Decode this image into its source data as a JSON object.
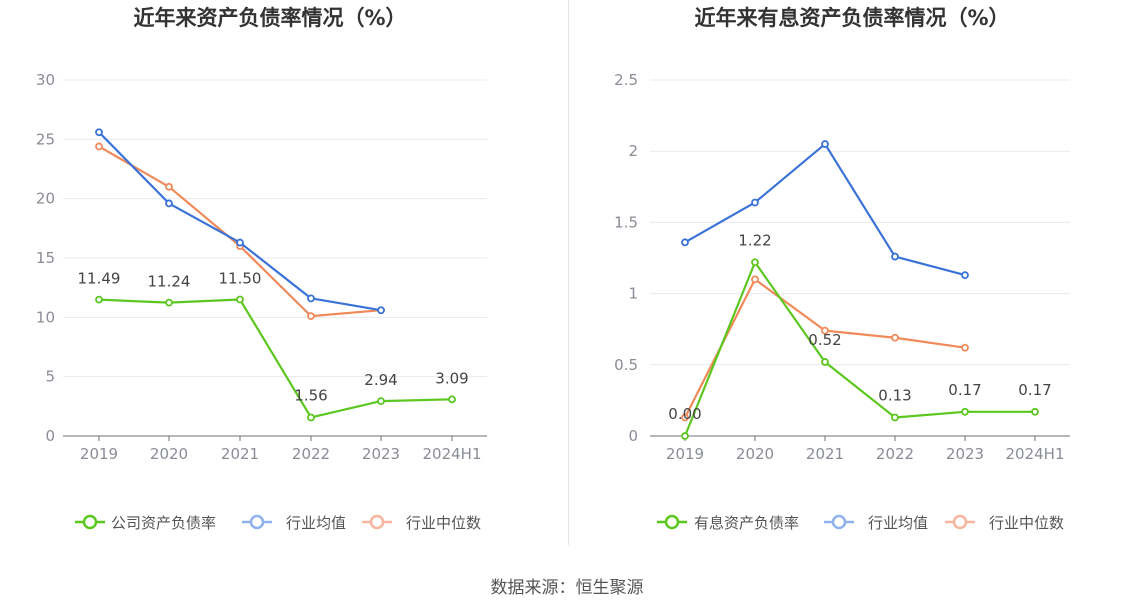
{
  "source_label": "数据来源：恒生聚源",
  "colors": {
    "company": "#5bc71f",
    "avg": "#3a72d8",
    "median": "#f08a5a",
    "legend_avg": "#8fb2ee",
    "legend_median": "#f6b59c",
    "grid": "#e6e9f0",
    "axis": "#6e7079",
    "tick": "#8a8d96",
    "title": "#333333"
  },
  "chart_data": [
    {
      "type": "line",
      "title": "近年来资产负债率情况（%）",
      "categories": [
        "2019",
        "2020",
        "2021",
        "2022",
        "2023",
        "2024H1"
      ],
      "ylim": [
        0,
        30
      ],
      "yticks": [
        0,
        5,
        10,
        15,
        20,
        25,
        30
      ],
      "ytick_labels": [
        "0",
        "5",
        "10",
        "15",
        "20",
        "25",
        "30"
      ],
      "series": [
        {
          "name": "公司资产负债率",
          "key": "company",
          "values": [
            11.49,
            11.24,
            11.5,
            1.56,
            2.94,
            3.09
          ],
          "labels": [
            "11.49",
            "11.24",
            "11.50",
            "1.56",
            "2.94",
            "3.09"
          ]
        },
        {
          "name": "行业均值",
          "key": "avg",
          "values": [
            25.6,
            19.6,
            16.3,
            11.6,
            10.6,
            null
          ]
        },
        {
          "name": "行业中位数",
          "key": "median",
          "values": [
            24.4,
            21.0,
            16.0,
            10.1,
            10.6,
            null
          ]
        }
      ]
    },
    {
      "type": "line",
      "title": "近年来有息资产负债率情况（%）",
      "categories": [
        "2019",
        "2020",
        "2021",
        "2022",
        "2023",
        "2024H1"
      ],
      "ylim": [
        0,
        2.5
      ],
      "yticks": [
        0,
        0.5,
        1,
        1.5,
        2,
        2.5
      ],
      "ytick_labels": [
        "0",
        "0.5",
        "1",
        "1.5",
        "2",
        "2.5"
      ],
      "series": [
        {
          "name": "有息资产负债率",
          "key": "company",
          "values": [
            0.0,
            1.22,
            0.52,
            0.13,
            0.17,
            0.17
          ],
          "labels": [
            "0.00",
            "1.22",
            "0.52",
            "0.13",
            "0.17",
            "0.17"
          ]
        },
        {
          "name": "行业均值",
          "key": "avg",
          "values": [
            1.36,
            1.64,
            2.05,
            1.26,
            1.13,
            null
          ]
        },
        {
          "name": "行业中位数",
          "key": "median",
          "values": [
            0.13,
            1.1,
            0.74,
            0.69,
            0.62,
            null
          ]
        }
      ]
    }
  ]
}
